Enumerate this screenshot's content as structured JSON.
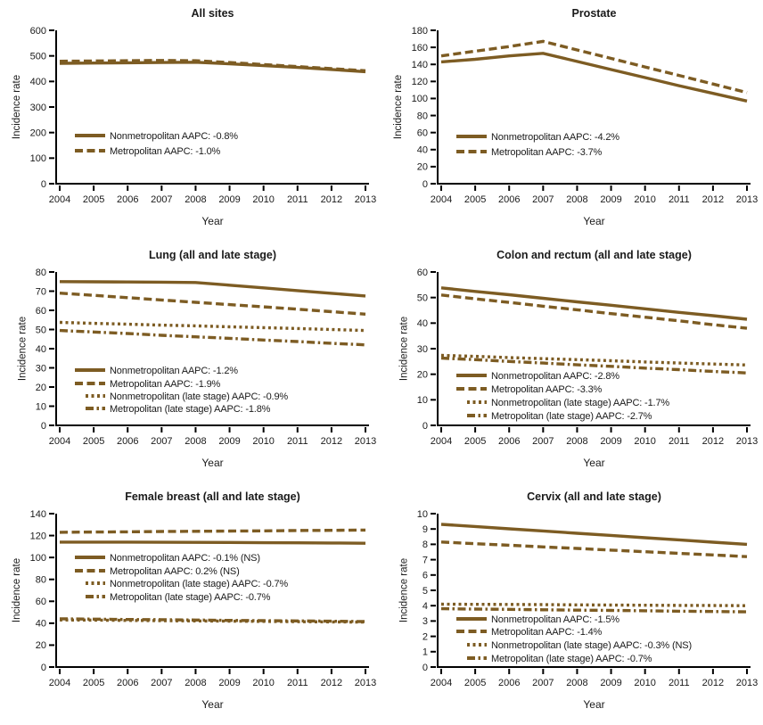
{
  "figure": {
    "line_color": "#7D5C23",
    "axis_color": "#000000",
    "text_color": "#1A1A1A",
    "background": "#FFFFFF",
    "shared_xlabel": "Year",
    "shared_ylabel": "Incidence rate"
  },
  "chart_data": [
    {
      "type": "line",
      "title": "All sites",
      "xlabel": "Year",
      "ylabel": "Incidence rate",
      "x": [
        2004,
        2005,
        2006,
        2007,
        2008,
        2009,
        2010,
        2011,
        2012,
        2013
      ],
      "ylim": [
        0,
        600
      ],
      "ytick_step": 100,
      "grid": false,
      "legend_position": "inside-lower-left",
      "legend_ys": [
        152,
        169
      ],
      "series": [
        {
          "name": "Nonmetropolitan AAPC: -0.8%",
          "style": "solid",
          "values": [
            471,
            472,
            473,
            474,
            475,
            469,
            462,
            455,
            447,
            438
          ]
        },
        {
          "name": "Metropolitan AAPC: -1.0%",
          "style": "dashed",
          "values": [
            479,
            480,
            481,
            482,
            481,
            474,
            466,
            458,
            450,
            442
          ]
        }
      ]
    },
    {
      "type": "line",
      "title": "Prostate",
      "xlabel": "Year",
      "ylabel": "Incidence rate",
      "x": [
        2004,
        2005,
        2006,
        2007,
        2008,
        2009,
        2010,
        2011,
        2012,
        2013
      ],
      "ylim": [
        0,
        180
      ],
      "ytick_step": 20,
      "grid": false,
      "legend_position": "inside-lower-left",
      "legend_ys": [
        153,
        170
      ],
      "series": [
        {
          "name": "Nonmetropolitan AAPC: -4.2%",
          "style": "solid",
          "values": [
            143,
            146,
            150,
            153,
            143.5,
            134,
            124.5,
            115,
            106,
            97
          ]
        },
        {
          "name": "Metropolitan AAPC: -3.7%",
          "style": "dashed",
          "values": [
            150,
            155.5,
            161,
            167,
            157,
            147,
            137,
            127,
            117,
            107
          ]
        }
      ]
    },
    {
      "type": "line",
      "title": "Lung (all and late stage)",
      "xlabel": "Year",
      "ylabel": "Incidence rate",
      "x": [
        2004,
        2005,
        2006,
        2007,
        2008,
        2009,
        2010,
        2011,
        2012,
        2013
      ],
      "ylim": [
        0,
        80
      ],
      "ytick_step": 10,
      "grid": false,
      "legend_position": "inside-lower-left",
      "legend_ys": [
        144,
        159,
        173,
        187
      ],
      "series": [
        {
          "name": "Nonmetropolitan AAPC: -1.2%",
          "style": "solid",
          "values": [
            75,
            74.9,
            74.8,
            74.7,
            74.5,
            73.1,
            71.7,
            70.3,
            68.9,
            67.5
          ]
        },
        {
          "name": "Metropolitan AAPC: -1.9%",
          "style": "dashed",
          "values": [
            69,
            67.8,
            66.6,
            65.4,
            64.2,
            63,
            61.8,
            60.6,
            59.3,
            58
          ]
        },
        {
          "name": "Nonmetropolitan (late stage) AAPC: -0.9%",
          "style": "dotted",
          "values": [
            53.7,
            53.2,
            52.8,
            52.3,
            51.9,
            51.4,
            51,
            50.5,
            50,
            49.5
          ]
        },
        {
          "name": "Metropolitan (late stage) AAPC: -1.8%",
          "style": "dashdot",
          "values": [
            49.5,
            48.7,
            47.9,
            47,
            46.2,
            45.4,
            44.5,
            43.7,
            42.8,
            42
          ]
        }
      ]
    },
    {
      "type": "line",
      "title": "Colon and rectum (all and late stage)",
      "xlabel": "Year",
      "ylabel": "Incidence rate",
      "x": [
        2004,
        2005,
        2006,
        2007,
        2008,
        2009,
        2010,
        2011,
        2012,
        2013
      ],
      "ylim": [
        0,
        60
      ],
      "ytick_step": 10,
      "grid": false,
      "legend_position": "inside-lower-left",
      "legend_ys": [
        150,
        165,
        180,
        195
      ],
      "series": [
        {
          "name": "Nonmetropolitan AAPC: -2.8%",
          "style": "solid",
          "values": [
            53.8,
            52.4,
            51.1,
            49.7,
            48.3,
            47,
            45.6,
            44.2,
            42.9,
            41.5
          ]
        },
        {
          "name": "Metropolitan AAPC: -3.3%",
          "style": "dashed",
          "values": [
            51,
            49.5,
            48.1,
            46.6,
            45.2,
            43.7,
            42.3,
            40.9,
            39.4,
            38
          ]
        },
        {
          "name": "Nonmetropolitan (late stage) AAPC: -1.7%",
          "style": "dotted",
          "values": [
            27.4,
            27,
            26.5,
            26.1,
            25.7,
            25.3,
            24.8,
            24.4,
            24,
            23.6
          ]
        },
        {
          "name": "Metropolitan (late stage) AAPC: -2.7%",
          "style": "dashdot",
          "values": [
            26.3,
            25.7,
            25,
            24.4,
            23.7,
            23.1,
            22.4,
            21.8,
            21.1,
            20.5
          ]
        }
      ]
    },
    {
      "type": "line",
      "title": "Female breast (all and late stage)",
      "xlabel": "Year",
      "ylabel": "Incidence rate",
      "x": [
        2004,
        2005,
        2006,
        2007,
        2008,
        2009,
        2010,
        2011,
        2012,
        2013
      ],
      "ylim": [
        0,
        140
      ],
      "ytick_step": 20,
      "grid": false,
      "legend_position": "inside-middle-left",
      "legend_ys": [
        83,
        98,
        112,
        127
      ],
      "series": [
        {
          "name": "Nonmetropolitan AAPC: -0.1% (NS)",
          "style": "solid",
          "values": [
            114,
            114,
            114,
            113.9,
            113.8,
            113.7,
            113.5,
            113.4,
            113.2,
            113
          ]
        },
        {
          "name": "Metropolitan AAPC: 0.2% (NS)",
          "style": "dashed",
          "values": [
            123,
            123.2,
            123.4,
            123.7,
            123.9,
            124.1,
            124.3,
            124.6,
            124.8,
            125
          ]
        },
        {
          "name": "Nonmetropolitan (late stage) AAPC: -0.7%",
          "style": "dotted",
          "values": [
            43,
            42.8,
            42.6,
            42.3,
            42.1,
            41.9,
            41.7,
            41.4,
            41.2,
            41
          ]
        },
        {
          "name": "Metropolitan (late stage) AAPC: -0.7%",
          "style": "dashdot",
          "values": [
            44,
            43.7,
            43.4,
            43.2,
            42.9,
            42.6,
            42.3,
            42.1,
            41.8,
            41.5
          ]
        }
      ]
    },
    {
      "type": "line",
      "title": "Cervix (all and late stage)",
      "xlabel": "Year",
      "ylabel": "Incidence rate",
      "x": [
        2004,
        2005,
        2006,
        2007,
        2008,
        2009,
        2010,
        2011,
        2012,
        2013
      ],
      "ylim": [
        0,
        10
      ],
      "ytick_step": 1,
      "grid": false,
      "legend_position": "inside-lower-left",
      "legend_ys": [
        152,
        166,
        181,
        196
      ],
      "series": [
        {
          "name": "Nonmetropolitan AAPC: -1.5%",
          "style": "solid",
          "values": [
            9.3,
            9.16,
            9.01,
            8.87,
            8.72,
            8.58,
            8.43,
            8.29,
            8.14,
            8
          ]
        },
        {
          "name": "Metropolitan AAPC: -1.4%",
          "style": "dashed",
          "values": [
            8.15,
            8.04,
            7.94,
            7.83,
            7.73,
            7.62,
            7.52,
            7.41,
            7.31,
            7.2
          ]
        },
        {
          "name": "Nonmetropolitan (late stage) AAPC: -0.3% (NS)",
          "style": "dotted",
          "values": [
            4.1,
            4.09,
            4.08,
            4.07,
            4.05,
            4.04,
            4.03,
            4.02,
            4.01,
            4
          ]
        },
        {
          "name": "Metropolitan (late stage) AAPC: -0.7%",
          "style": "dashdot",
          "values": [
            3.8,
            3.78,
            3.76,
            3.73,
            3.71,
            3.69,
            3.67,
            3.64,
            3.62,
            3.6
          ]
        }
      ]
    }
  ]
}
